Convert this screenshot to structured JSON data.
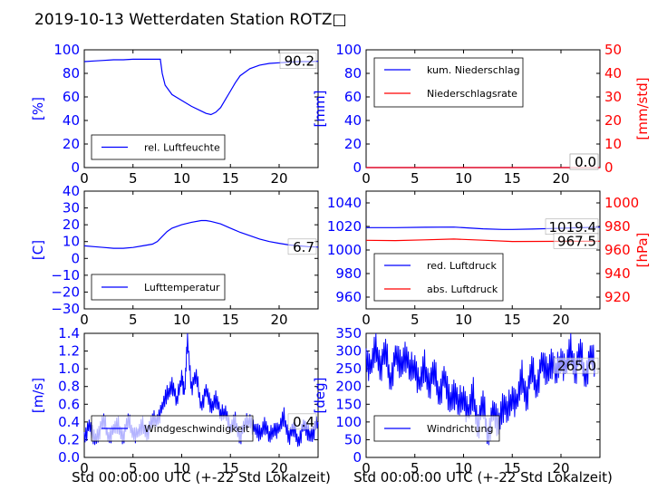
{
  "figure": {
    "title": "2019-10-13 Wetterdaten Station ROTZ□",
    "xlabel": "Std 00:00:00 UTC (+-22 Std Lokalzeit)"
  },
  "colors": {
    "primary": "#0000ff",
    "secondary": "#ff0000",
    "axis": "#000000",
    "legend_border": "#000000"
  },
  "chart_data": [
    {
      "type": "line",
      "panel": "humidity",
      "ylabel": "[%]",
      "xlim": [
        0,
        24
      ],
      "ylim": [
        0,
        100
      ],
      "xticks": [
        "0",
        "5",
        "10",
        "15",
        "20"
      ],
      "yticks": [
        "0",
        "20",
        "40",
        "60",
        "80",
        "100"
      ],
      "series": [
        {
          "name": "rel. Luftfeuchte",
          "axis": "left",
          "x": [
            0,
            1,
            2,
            3,
            4,
            5,
            6,
            7,
            7.8,
            8.0,
            8.3,
            9,
            10,
            11,
            12,
            12.5,
            13,
            13.5,
            14,
            14.5,
            15,
            15.5,
            16,
            17,
            18,
            19,
            20,
            21,
            22,
            23,
            24
          ],
          "y": [
            90,
            90.5,
            91,
            91.5,
            91.5,
            92,
            92,
            92,
            92,
            80,
            70,
            62,
            57,
            52,
            48,
            46,
            45,
            47,
            51,
            58,
            65,
            72,
            78,
            84,
            87,
            88.5,
            89,
            89.5,
            90,
            90,
            90.2
          ]
        }
      ],
      "end_labels": [
        "90.2"
      ]
    },
    {
      "type": "line",
      "panel": "precipitation",
      "ylabel": "[mm]",
      "ylabel_right": "[mm/std]",
      "xlim": [
        0,
        24
      ],
      "ylim": [
        0,
        100
      ],
      "ylim_right": [
        0,
        50
      ],
      "xticks": [
        "0",
        "5",
        "10",
        "15",
        "20"
      ],
      "yticks": [
        "0",
        "20",
        "40",
        "60",
        "80",
        "100"
      ],
      "yticks_right": [
        "0",
        "10",
        "20",
        "30",
        "40",
        "50"
      ],
      "series": [
        {
          "name": "kum. Niederschlag",
          "axis": "left",
          "x": [
            0,
            24
          ],
          "y": [
            0,
            0
          ]
        },
        {
          "name": "Niederschlagsrate",
          "axis": "right",
          "x": [
            0,
            24
          ],
          "y": [
            0,
            0
          ]
        }
      ],
      "end_labels": [
        "0.0",
        "0.0"
      ]
    },
    {
      "type": "line",
      "panel": "temperature",
      "ylabel": "[C]",
      "xlim": [
        0,
        24
      ],
      "ylim": [
        -30,
        40
      ],
      "xticks": [
        "0",
        "5",
        "10",
        "15",
        "20"
      ],
      "yticks": [
        "−30",
        "−20",
        "−10",
        "0",
        "10",
        "20",
        "30",
        "40"
      ],
      "series": [
        {
          "name": "Lufttemperatur",
          "axis": "left",
          "x": [
            0,
            1,
            2,
            3,
            4,
            5,
            6,
            7,
            7.5,
            8,
            8.5,
            9,
            10,
            11,
            12,
            12.5,
            13,
            14,
            15,
            16,
            17,
            18,
            19,
            20,
            21,
            22,
            23,
            24
          ],
          "y": [
            7.5,
            7,
            6.5,
            6,
            6,
            6.5,
            7.5,
            8.5,
            10,
            13,
            16,
            18,
            20,
            21.5,
            22.5,
            22.5,
            22,
            20.5,
            18,
            15.5,
            13.5,
            11.5,
            10,
            9,
            8,
            7.5,
            7,
            6.7
          ]
        }
      ],
      "end_labels": [
        "6.7"
      ]
    },
    {
      "type": "line",
      "panel": "pressure",
      "ylabel_right": "[hPa]",
      "xlim": [
        0,
        24
      ],
      "ylim": [
        950,
        1050
      ],
      "ylim_right": [
        910,
        1010
      ],
      "xticks": [
        "0",
        "5",
        "10",
        "15",
        "20"
      ],
      "yticks": [
        "960",
        "980",
        "1000",
        "1020",
        "1040"
      ],
      "yticks_right": [
        "920",
        "940",
        "960",
        "980",
        "1000"
      ],
      "series": [
        {
          "name": "red. Luftdruck",
          "axis": "left",
          "x": [
            0,
            3,
            6,
            9,
            12,
            14,
            15,
            17,
            19,
            21,
            24
          ],
          "y": [
            1019,
            1019,
            1019.3,
            1019.5,
            1018,
            1017.5,
            1017.5,
            1017.8,
            1018.2,
            1018.8,
            1019.4
          ]
        },
        {
          "name": "abs. Luftdruck",
          "axis": "right",
          "x": [
            0,
            3,
            6,
            9,
            12,
            15,
            18,
            21,
            24
          ],
          "y": [
            968.2,
            968,
            968.6,
            969.3,
            968.3,
            967.2,
            967.3,
            967.4,
            967.5
          ]
        }
      ],
      "end_labels": [
        "1019.4",
        "967.5"
      ]
    },
    {
      "type": "line",
      "panel": "wind_speed",
      "ylabel": "[m/s]",
      "xlim": [
        0,
        24
      ],
      "ylim": [
        0,
        1.4
      ],
      "xticks": [
        "0",
        "5",
        "10",
        "15",
        "20"
      ],
      "yticks": [
        "0.0",
        "0.2",
        "0.4",
        "0.6",
        "0.8",
        "1.0",
        "1.2",
        "1.4"
      ],
      "series": [
        {
          "name": "Windgeschwindigkeit",
          "axis": "left",
          "x": [
            0,
            0.5,
            1,
            1.5,
            2,
            2.5,
            3,
            3.5,
            4,
            4.5,
            5,
            5.5,
            6,
            6.5,
            7,
            7.5,
            8,
            8.5,
            9,
            9.5,
            10,
            10.3,
            10.6,
            11,
            11.5,
            12,
            12.5,
            13,
            13.5,
            14,
            14.5,
            15,
            15.5,
            16,
            16.5,
            17,
            17.5,
            18,
            18.5,
            19,
            19.5,
            20,
            20.5,
            21,
            21.5,
            22,
            22.5,
            23,
            23.5,
            24
          ],
          "y": [
            0.25,
            0.35,
            0.2,
            0.3,
            0.4,
            0.25,
            0.3,
            0.35,
            0.25,
            0.4,
            0.3,
            0.25,
            0.35,
            0.3,
            0.4,
            0.45,
            0.55,
            0.7,
            0.85,
            0.6,
            0.95,
            0.7,
            1.35,
            0.8,
            0.9,
            0.6,
            0.75,
            0.55,
            0.7,
            0.45,
            0.55,
            0.3,
            0.4,
            0.25,
            0.35,
            0.45,
            0.3,
            0.25,
            0.4,
            0.2,
            0.35,
            0.3,
            0.45,
            0.25,
            0.3,
            0.2,
            0.35,
            0.25,
            0.3,
            0.4
          ]
        }
      ],
      "end_labels": [
        "0.4"
      ]
    },
    {
      "type": "line",
      "panel": "wind_direction",
      "ylabel": "[deg]",
      "xlim": [
        0,
        24
      ],
      "ylim": [
        0,
        360
      ],
      "xticks": [
        "0",
        "5",
        "10",
        "15",
        "20"
      ],
      "yticks": [
        "0",
        "50",
        "100",
        "150",
        "200",
        "250",
        "300",
        "350"
      ],
      "series": [
        {
          "name": "Windrichtung",
          "axis": "left",
          "x": [
            0,
            0.5,
            1,
            1.5,
            2,
            2.5,
            3,
            3.5,
            4,
            4.5,
            5,
            5.5,
            6,
            6.5,
            7,
            7.5,
            8,
            8.5,
            9,
            9.5,
            10,
            10.5,
            11,
            11.5,
            12,
            12.5,
            13,
            13.5,
            14,
            14.5,
            15,
            15.5,
            16,
            16.5,
            17,
            17.5,
            18,
            18.5,
            19,
            19.5,
            20,
            20.5,
            21,
            21.5,
            22,
            22.5,
            23,
            23.5
          ],
          "y": [
            300,
            250,
            320,
            270,
            300,
            230,
            290,
            260,
            310,
            240,
            280,
            200,
            260,
            220,
            240,
            190,
            230,
            160,
            200,
            140,
            190,
            120,
            180,
            100,
            150,
            70,
            130,
            90,
            160,
            120,
            190,
            150,
            230,
            180,
            250,
            210,
            270,
            240,
            290,
            230,
            300,
            250,
            310,
            260,
            300,
            240,
            290,
            265
          ]
        }
      ],
      "end_labels": [
        "265.0"
      ]
    }
  ]
}
